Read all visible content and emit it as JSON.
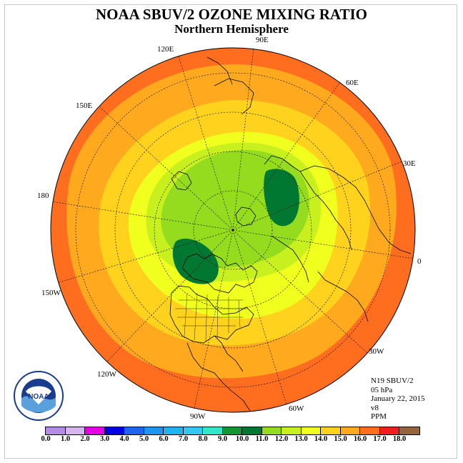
{
  "title": "NOAA SBUV/2 OZONE MIXING RATIO",
  "subtitle": "Northern Hemisphere",
  "longitude_labels": [
    "90E",
    "60E",
    "30E",
    "0",
    "30W",
    "60W",
    "90W",
    "120W",
    "150W",
    "180",
    "150E",
    "120E"
  ],
  "info": {
    "instrument": "N19 SBUV/2",
    "pressure": "05 hPa",
    "date": "January 22, 2015",
    "version": "v8",
    "units": "PPM"
  },
  "colorbar": {
    "ticks": [
      "0.0",
      "1.0",
      "2.0",
      "3.0",
      "4.0",
      "5.0",
      "6.0",
      "7.0",
      "8.0",
      "9.0",
      "10.0",
      "11.0",
      "12.0",
      "13.0",
      "14.0",
      "15.0",
      "16.0",
      "17.0",
      "18.0"
    ],
    "colors": [
      "#b48ce6",
      "#d6b4f0",
      "#e600e6",
      "#0000e6",
      "#1e64f0",
      "#1e96f0",
      "#1eb4f0",
      "#32c8f0",
      "#32e6c8",
      "#149632",
      "#007832",
      "#96dc1e",
      "#c8f01e",
      "#f0ff1e",
      "#ffd21e",
      "#ffaa1e",
      "#ff6e1e",
      "#f01e1e",
      "#96643c"
    ]
  },
  "map_colors": {
    "rim": "#ff6e1e",
    "outer": "#ffaa1e",
    "mid": "#ffd21e",
    "inner": "#f0ff1e",
    "core_light": "#c8f01e",
    "core": "#96dc1e",
    "max": "#007832"
  }
}
